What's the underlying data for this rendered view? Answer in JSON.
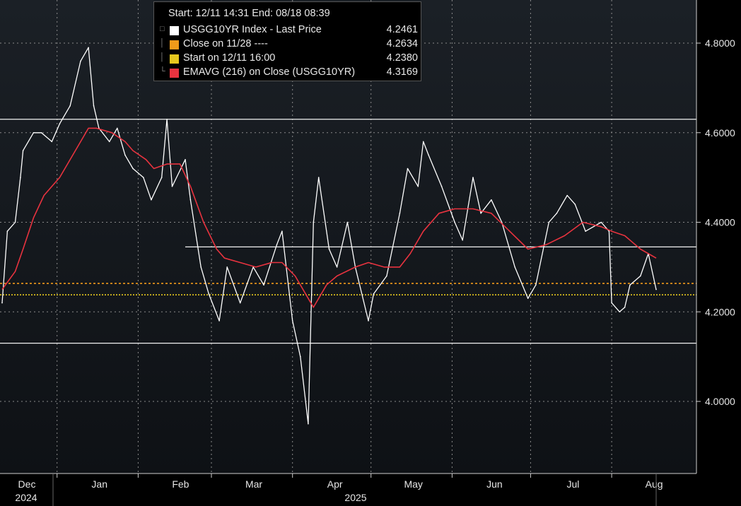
{
  "colors": {
    "background": "#000000",
    "price_line": "#ffffff",
    "ema_line": "#e8333f",
    "close_ref_line": "#f09a1a",
    "start_ref_line": "#e6c81e",
    "grid": "#8a8a8a",
    "axis": "#cfcfcf"
  },
  "legend": {
    "header": "Start: 12/11 14:31 End: 08/18 08:39",
    "items": [
      {
        "icon": "square-icon",
        "color": "#ffffff",
        "label": "USGG10YR Index - Last Price",
        "value": "4.2461"
      },
      {
        "icon": "square-icon",
        "color": "#f09a1a",
        "label": "Close on 11/28 ----",
        "value": "4.2634"
      },
      {
        "icon": "square-icon",
        "color": "#e6c81e",
        "label": "Start on 12/11 16:00",
        "value": "4.2380"
      },
      {
        "icon": "square-icon",
        "color": "#e8333f",
        "label": "EMAVG (216)  on Close (USGG10YR)",
        "value": "4.3169"
      }
    ]
  },
  "chart_data": {
    "type": "line",
    "title": "",
    "xlabel": "",
    "ylabel": "",
    "ylim": [
      3.86,
      4.89
    ],
    "y_ticks": [
      {
        "label": "4.8000",
        "value": 4.8
      },
      {
        "label": "4.6000",
        "value": 4.6
      },
      {
        "label": "4.4000",
        "value": 4.4
      },
      {
        "label": "4.2000",
        "value": 4.2
      },
      {
        "label": "4.0000",
        "value": 4.0
      }
    ],
    "x_range": [
      "2024-12-11",
      "2025-08-18"
    ],
    "x_ticks": [
      {
        "label": "Dec",
        "date": "2024-12-01"
      },
      {
        "label": "Jan",
        "date": "2025-01-01"
      },
      {
        "label": "Feb",
        "date": "2025-02-01"
      },
      {
        "label": "Mar",
        "date": "2025-03-01"
      },
      {
        "label": "Apr",
        "date": "2025-04-01"
      },
      {
        "label": "May",
        "date": "2025-05-01"
      },
      {
        "label": "Jun",
        "date": "2025-06-01"
      },
      {
        "label": "Jul",
        "date": "2025-07-01"
      },
      {
        "label": "Aug",
        "date": "2025-08-01"
      }
    ],
    "year_labels": [
      {
        "label": "2024",
        "date": "2024-12-01"
      },
      {
        "label": "2025",
        "date": "2025-04-01"
      }
    ],
    "grid": true,
    "legend_position": "top-left",
    "series": [
      {
        "name": "USGG10YR Index - Last Price",
        "x": [
          "2024-12-11",
          "2024-12-13",
          "2024-12-16",
          "2024-12-18",
          "2024-12-19",
          "2024-12-23",
          "2024-12-26",
          "2024-12-30",
          "2025-01-02",
          "2025-01-06",
          "2025-01-10",
          "2025-01-13",
          "2025-01-15",
          "2025-01-17",
          "2025-01-21",
          "2025-01-24",
          "2025-01-27",
          "2025-01-30",
          "2025-02-03",
          "2025-02-06",
          "2025-02-10",
          "2025-02-12",
          "2025-02-14",
          "2025-02-19",
          "2025-02-21",
          "2025-02-25",
          "2025-02-28",
          "2025-03-04",
          "2025-03-07",
          "2025-03-12",
          "2025-03-17",
          "2025-03-21",
          "2025-03-26",
          "2025-03-28",
          "2025-04-01",
          "2025-04-04",
          "2025-04-07",
          "2025-04-09",
          "2025-04-11",
          "2025-04-15",
          "2025-04-18",
          "2025-04-22",
          "2025-04-25",
          "2025-04-30",
          "2025-05-02",
          "2025-05-07",
          "2025-05-12",
          "2025-05-15",
          "2025-05-19",
          "2025-05-21",
          "2025-05-23",
          "2025-05-28",
          "2025-06-02",
          "2025-06-05",
          "2025-06-09",
          "2025-06-12",
          "2025-06-16",
          "2025-06-20",
          "2025-06-25",
          "2025-06-30",
          "2025-07-03",
          "2025-07-08",
          "2025-07-11",
          "2025-07-15",
          "2025-07-18",
          "2025-07-22",
          "2025-07-28",
          "2025-07-31",
          "2025-08-01",
          "2025-08-04",
          "2025-08-06",
          "2025-08-08",
          "2025-08-12",
          "2025-08-15",
          "2025-08-18"
        ],
        "values": [
          4.22,
          4.38,
          4.4,
          4.5,
          4.56,
          4.6,
          4.6,
          4.58,
          4.62,
          4.66,
          4.76,
          4.79,
          4.66,
          4.61,
          4.58,
          4.61,
          4.55,
          4.52,
          4.5,
          4.45,
          4.5,
          4.63,
          4.48,
          4.54,
          4.45,
          4.3,
          4.24,
          4.18,
          4.3,
          4.22,
          4.3,
          4.26,
          4.35,
          4.38,
          4.18,
          4.1,
          3.95,
          4.4,
          4.5,
          4.34,
          4.3,
          4.4,
          4.3,
          4.18,
          4.24,
          4.28,
          4.42,
          4.52,
          4.48,
          4.58,
          4.55,
          4.48,
          4.4,
          4.36,
          4.5,
          4.42,
          4.45,
          4.4,
          4.3,
          4.23,
          4.26,
          4.4,
          4.42,
          4.46,
          4.44,
          4.38,
          4.4,
          4.38,
          4.22,
          4.2,
          4.21,
          4.26,
          4.28,
          4.33,
          4.25
        ]
      },
      {
        "name": "EMAVG (216)  on Close (USGG10YR)",
        "x": [
          "2024-12-11",
          "2024-12-16",
          "2024-12-19",
          "2024-12-23",
          "2024-12-27",
          "2025-01-02",
          "2025-01-08",
          "2025-01-13",
          "2025-01-16",
          "2025-01-22",
          "2025-01-27",
          "2025-01-30",
          "2025-02-04",
          "2025-02-07",
          "2025-02-12",
          "2025-02-17",
          "2025-02-21",
          "2025-02-26",
          "2025-03-03",
          "2025-03-06",
          "2025-03-12",
          "2025-03-18",
          "2025-03-24",
          "2025-03-28",
          "2025-04-02",
          "2025-04-07",
          "2025-04-09",
          "2025-04-14",
          "2025-04-18",
          "2025-04-25",
          "2025-04-30",
          "2025-05-06",
          "2025-05-12",
          "2025-05-16",
          "2025-05-21",
          "2025-05-27",
          "2025-06-02",
          "2025-06-09",
          "2025-06-16",
          "2025-06-23",
          "2025-06-30",
          "2025-07-07",
          "2025-07-14",
          "2025-07-21",
          "2025-07-28",
          "2025-08-01",
          "2025-08-06",
          "2025-08-12",
          "2025-08-18"
        ],
        "values": [
          4.25,
          4.29,
          4.34,
          4.41,
          4.46,
          4.5,
          4.56,
          4.61,
          4.61,
          4.6,
          4.58,
          4.56,
          4.54,
          4.52,
          4.53,
          4.53,
          4.48,
          4.4,
          4.34,
          4.32,
          4.31,
          4.3,
          4.31,
          4.31,
          4.28,
          4.23,
          4.21,
          4.26,
          4.28,
          4.3,
          4.31,
          4.3,
          4.3,
          4.33,
          4.38,
          4.42,
          4.43,
          4.43,
          4.42,
          4.38,
          4.34,
          4.35,
          4.37,
          4.4,
          4.39,
          4.38,
          4.37,
          4.34,
          4.32
        ]
      }
    ],
    "reference_lines": [
      {
        "name": "Close on 11/28 ----",
        "value": 4.2634,
        "style": "dashed"
      },
      {
        "name": "Start on 12/11 16:00",
        "value": 4.238,
        "style": "dotted"
      }
    ],
    "annotations": [
      {
        "type": "horizontal-line",
        "value": 4.63,
        "from": "2024-12-01",
        "to": "2025-08-31"
      },
      {
        "type": "horizontal-line",
        "value": 4.345,
        "from": "2025-03-01",
        "to": "2025-08-31"
      },
      {
        "type": "horizontal-line",
        "value": 4.13,
        "from": "2024-12-01",
        "to": "2025-08-31"
      }
    ]
  }
}
